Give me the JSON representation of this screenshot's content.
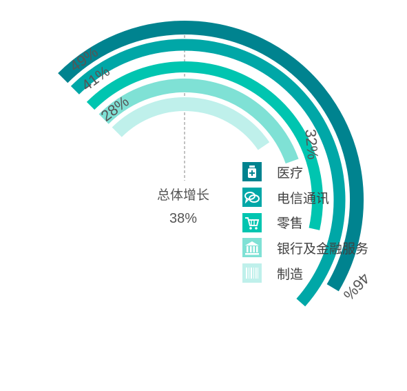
{
  "chart_data": {
    "type": "radial-bar",
    "center_label": "总体增长",
    "center_value": "38%",
    "series": [
      {
        "name": "医疗",
        "value": 46,
        "value_label": "46%",
        "color": "#00838F"
      },
      {
        "name": "电信通讯",
        "value": 49,
        "value_label": "49%",
        "color": "#00A7A7"
      },
      {
        "name": "零售",
        "value": 41,
        "value_label": "41%",
        "color": "#00C5B0"
      },
      {
        "name": "银行及金融服务",
        "value": 32,
        "value_label": "32%",
        "color": "#7FE1D5"
      },
      {
        "name": "制造",
        "value": 28,
        "value_label": "28%",
        "color": "#BFF0EB"
      }
    ]
  },
  "legend": {
    "items": [
      {
        "label": "医疗",
        "icon": "medicine-icon",
        "color": "#00838F"
      },
      {
        "label": "电信通讯",
        "icon": "chat-bubbles-icon",
        "color": "#00A7A7"
      },
      {
        "label": "零售",
        "icon": "shopping-cart-icon",
        "color": "#00C5B0"
      },
      {
        "label": "银行及金融服务",
        "icon": "bank-icon",
        "color": "#7FE1D5"
      },
      {
        "label": "制造",
        "icon": "barcode-icon",
        "color": "#BFF0EB"
      }
    ]
  }
}
